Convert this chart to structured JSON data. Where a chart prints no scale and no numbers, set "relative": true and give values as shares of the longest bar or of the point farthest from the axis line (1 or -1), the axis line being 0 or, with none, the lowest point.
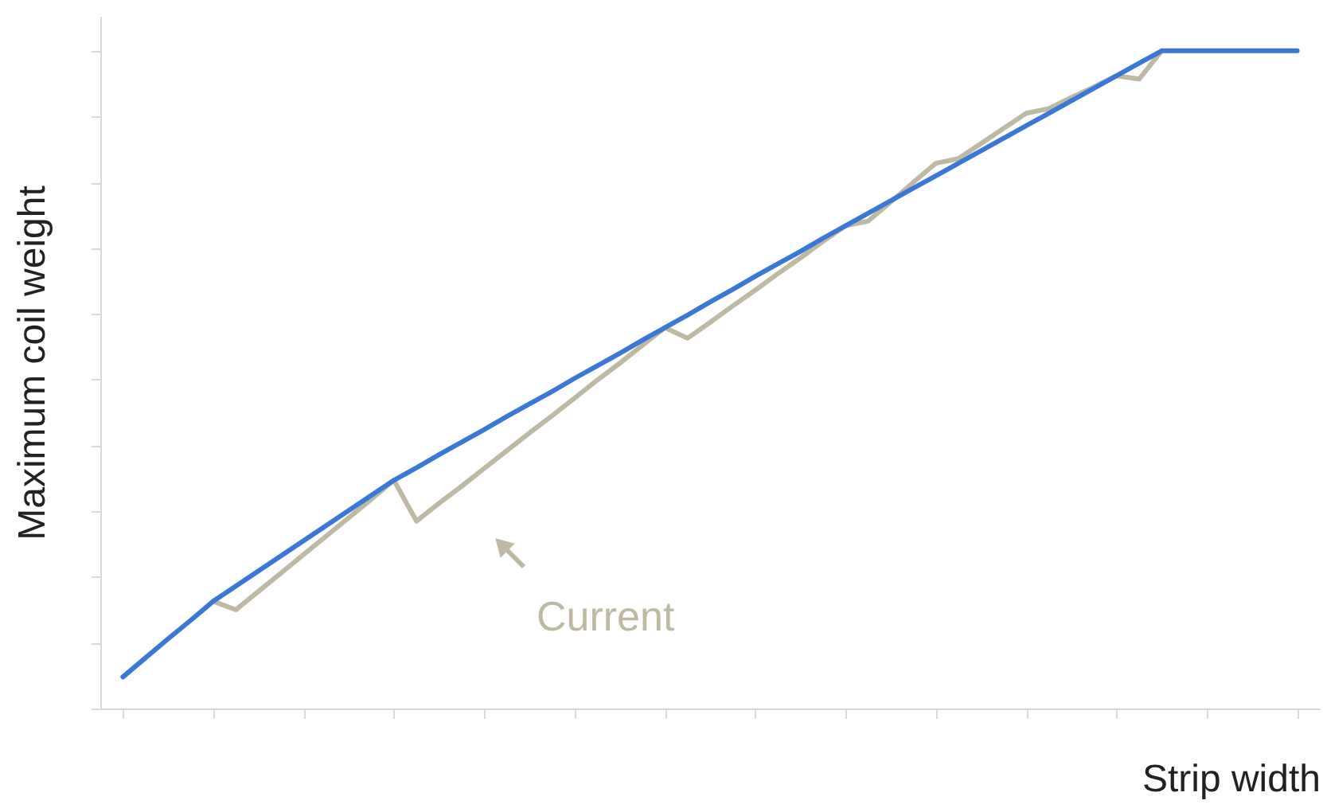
{
  "chart_data": {
    "type": "line",
    "relative": true,
    "xlabel": "Strip width",
    "ylabel": "Maximum coil weight",
    "categories": [
      null,
      null,
      null,
      null,
      null,
      null,
      null,
      null,
      null,
      null,
      null,
      null,
      null,
      null,
      null,
      null,
      null,
      null,
      null,
      null,
      null,
      null,
      null,
      null,
      null,
      null,
      null,
      null,
      null,
      null,
      null,
      null,
      null,
      null,
      null,
      null,
      null,
      null,
      null,
      null,
      null,
      null,
      null,
      null,
      null,
      null,
      null,
      null,
      null,
      null,
      null,
      null,
      null
    ],
    "series": [
      {
        "color": "#bdb9a3",
        "values": [
          null,
          null,
          null,
          null,
          0.163,
          0.15,
          0.178,
          0.206,
          0.234,
          0.262,
          0.29,
          0.318,
          0.347,
          0.285,
          0.312,
          0.338,
          0.365,
          0.392,
          0.419,
          0.445,
          0.472,
          0.499,
          0.525,
          0.552,
          0.579,
          0.563,
          0.587,
          0.612,
          0.636,
          0.661,
          0.685,
          0.71,
          0.734,
          0.741,
          0.77,
          0.8,
          0.829,
          0.836,
          0.859,
          0.882,
          0.905,
          0.912,
          0.929,
          0.945,
          0.962,
          0.957,
          1.0,
          null,
          null,
          null,
          null,
          null,
          null
        ]
      },
      {
        "color": "#3a78d8",
        "values": [
          0.048,
          0.077,
          0.106,
          0.134,
          0.163,
          0.186,
          0.209,
          0.232,
          0.255,
          0.278,
          0.301,
          0.324,
          0.347,
          0.366,
          0.386,
          0.405,
          0.424,
          0.444,
          0.463,
          0.482,
          0.502,
          0.521,
          0.54,
          0.56,
          0.579,
          0.598,
          0.618,
          0.637,
          0.657,
          0.676,
          0.695,
          0.715,
          0.734,
          0.753,
          0.772,
          0.791,
          0.81,
          0.829,
          0.848,
          0.867,
          0.886,
          0.905,
          0.924,
          0.943,
          0.962,
          0.981,
          1.0,
          1.0,
          1.0,
          1.0,
          1.0,
          1.0,
          1.0
        ]
      }
    ],
    "annotations": [
      "Current"
    ],
    "line_style": "solid",
    "marker": "none"
  }
}
